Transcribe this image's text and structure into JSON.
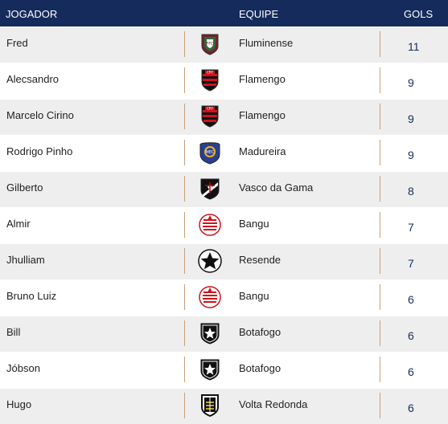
{
  "header": {
    "player": "JOGADOR",
    "team": "EQUIPE",
    "goals": "GOLS"
  },
  "rows": [
    {
      "player": "Fred",
      "team": "Fluminense",
      "goals": "11",
      "crest": "fluminense-crest-icon"
    },
    {
      "player": "Alecsandro",
      "team": "Flamengo",
      "goals": "9",
      "crest": "flamengo-crest-icon"
    },
    {
      "player": "Marcelo Cirino",
      "team": "Flamengo",
      "goals": "9",
      "crest": "flamengo-crest-icon"
    },
    {
      "player": "Rodrigo Pinho",
      "team": "Madureira",
      "goals": "9",
      "crest": "madureira-crest-icon"
    },
    {
      "player": "Gilberto",
      "team": "Vasco da Gama",
      "goals": "8",
      "crest": "vasco-crest-icon"
    },
    {
      "player": "Almir",
      "team": "Bangu",
      "goals": "7",
      "crest": "bangu-crest-icon"
    },
    {
      "player": "Jhulliam",
      "team": "Resende",
      "goals": "7",
      "crest": "resende-crest-icon"
    },
    {
      "player": "Bruno Luiz",
      "team": "Bangu",
      "goals": "6",
      "crest": "bangu-crest-icon"
    },
    {
      "player": "Bill",
      "team": "Botafogo",
      "goals": "6",
      "crest": "botafogo-crest-icon"
    },
    {
      "player": "Jóbson",
      "team": "Botafogo",
      "goals": "6",
      "crest": "botafogo-crest-icon"
    },
    {
      "player": "Hugo",
      "team": "Volta Redonda",
      "goals": "6",
      "crest": "volta-redonda-crest-icon"
    }
  ],
  "colors": {
    "header_bg": "#152b5c",
    "separator": "#c8a07a",
    "goals_text": "#152b5c"
  }
}
